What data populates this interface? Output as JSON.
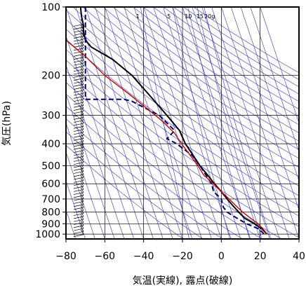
{
  "chart_data": {
    "type": "line",
    "title": "",
    "xlabel": "気温(実線), 露点(破線)",
    "ylabel": "気圧(hPa)",
    "xlim": [
      -80,
      40
    ],
    "ylim": [
      1050,
      100
    ],
    "y_scale": "log",
    "x_ticks": [
      "−80",
      "−60",
      "−40",
      "−20",
      "0",
      "20",
      "40"
    ],
    "y_ticks": [
      100,
      200,
      300,
      400,
      500,
      600,
      700,
      800,
      900,
      1000
    ],
    "grid": true,
    "mixing_ratio_labels": [
      "1",
      "5",
      "10",
      "15",
      "20g"
    ],
    "colors": {
      "temperature": "#000000",
      "dewpoint": "#000066",
      "parcel": "#cc0000",
      "background_lines": "#3333cc",
      "grid": "#000000"
    },
    "series": [
      {
        "key": "temperature",
        "style": "solid",
        "points": [
          [
            23.5,
            1000
          ],
          [
            21,
            950
          ],
          [
            17,
            900
          ],
          [
            12,
            850
          ],
          [
            9,
            800
          ],
          [
            6,
            750
          ],
          [
            3,
            700
          ],
          [
            0,
            650
          ],
          [
            -3.5,
            600
          ],
          [
            -7,
            550
          ],
          [
            -11,
            500
          ],
          [
            -14.5,
            450
          ],
          [
            -18.5,
            400
          ],
          [
            -21.5,
            350
          ],
          [
            -28,
            300
          ],
          [
            -36,
            250
          ],
          [
            -46,
            200
          ],
          [
            -56,
            170
          ],
          [
            -67,
            150
          ],
          [
            -70,
            140
          ],
          [
            -71,
            130
          ],
          [
            -71,
            120
          ],
          [
            -72,
            110
          ],
          [
            -72.5,
            100
          ]
        ]
      },
      {
        "key": "dewpoint",
        "style": "dashed",
        "points": [
          [
            22,
            1000
          ],
          [
            19.5,
            950
          ],
          [
            13,
            900
          ],
          [
            8,
            850
          ],
          [
            3,
            800
          ],
          [
            1,
            760
          ],
          [
            0,
            700
          ],
          [
            -4,
            650
          ],
          [
            -5,
            600
          ],
          [
            -11,
            500
          ],
          [
            -15,
            450
          ],
          [
            -23,
            400
          ],
          [
            -28,
            380
          ],
          [
            -24,
            350
          ],
          [
            -32,
            300
          ],
          [
            -46,
            260
          ],
          [
            -50,
            255
          ],
          [
            -70,
            255
          ],
          [
            -70,
            100
          ]
        ]
      },
      {
        "key": "parcel",
        "style": "solid",
        "points": [
          [
            23.5,
            1000
          ],
          [
            22,
            960
          ],
          [
            19,
            900
          ],
          [
            15,
            850
          ],
          [
            11,
            800
          ],
          [
            7.5,
            750
          ],
          [
            4,
            700
          ],
          [
            0,
            650
          ],
          [
            -4,
            600
          ],
          [
            -9,
            550
          ],
          [
            -12,
            500
          ],
          [
            -16,
            450
          ],
          [
            -20.5,
            400
          ],
          [
            -24,
            360
          ],
          [
            -30,
            320
          ],
          [
            -36,
            290
          ],
          [
            -48,
            240
          ],
          [
            -60,
            200
          ],
          [
            -70,
            165
          ],
          [
            -80,
            140
          ]
        ]
      }
    ]
  }
}
